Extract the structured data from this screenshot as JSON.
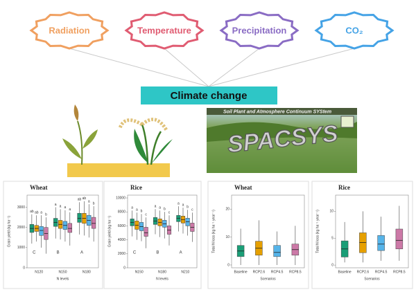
{
  "drivers": [
    {
      "label": "Radiation",
      "color": "#f0a060"
    },
    {
      "label": "Temperature",
      "color": "#e05c72"
    },
    {
      "label": "Precipitation",
      "color": "#8a6cc4"
    },
    {
      "label": "CO₂",
      "color": "#45a3e6"
    }
  ],
  "center": {
    "label": "Climate change",
    "color": "#2ec6c6"
  },
  "model": {
    "banner": "Soil Plant and Atmosphere Continuum SYStem",
    "name": "SPACSYS"
  },
  "chart_data": [
    {
      "type": "box",
      "title": "Wheat",
      "y_label": "Grain yield (kg ha⁻¹)",
      "x_label": "N levels",
      "categories": [
        "N120",
        "N150",
        "N180"
      ],
      "ylim": [
        0,
        3600
      ],
      "yticks": [
        0,
        1000,
        2000,
        3000
      ],
      "group_letters": [
        "C",
        "B",
        "A"
      ],
      "series": [
        {
          "color": "#1a9e77",
          "boxes": [
            [
              1200,
              1750,
              1950,
              2150,
              2650
            ],
            [
              1450,
              2050,
              2250,
              2450,
              3000
            ],
            [
              1650,
              2250,
              2450,
              2700,
              3250
            ]
          ],
          "letters": [
            "ab",
            "a",
            "ab"
          ]
        },
        {
          "color": "#e6a000",
          "boxes": [
            [
              1300,
              1800,
              1950,
              2100,
              2600
            ],
            [
              1400,
              1950,
              2150,
              2350,
              2900
            ],
            [
              1600,
              2200,
              2450,
              2700,
              3300
            ]
          ],
          "letters": [
            "ab",
            "a",
            "ab"
          ]
        },
        {
          "color": "#56b4e9",
          "boxes": [
            [
              1000,
              1600,
              1850,
              2050,
              2600
            ],
            [
              1300,
              1900,
              2100,
              2300,
              2850
            ],
            [
              1500,
              2100,
              2350,
              2600,
              3150
            ]
          ],
          "letters": [
            "a",
            "a",
            "a"
          ]
        },
        {
          "color": "#cc79a7",
          "boxes": [
            [
              700,
              1400,
              1700,
              2000,
              2500
            ],
            [
              1100,
              1750,
              1950,
              2200,
              2750
            ],
            [
              1300,
              1950,
              2200,
              2500,
              3050
            ]
          ],
          "letters": [
            "b",
            "a",
            "b"
          ]
        }
      ]
    },
    {
      "type": "box",
      "title": "Rice",
      "y_label": "Grain yield (kg ha⁻¹)",
      "x_label": "N levels",
      "categories": [
        "N150",
        "N180",
        "N210"
      ],
      "ylim": [
        0,
        10400
      ],
      "yticks": [
        0,
        2000,
        4000,
        6000,
        8000,
        10000
      ],
      "group_letters": [
        "C",
        "B",
        "A"
      ],
      "series": [
        {
          "color": "#1a9e77",
          "boxes": [
            [
              4500,
              6000,
              6500,
              7000,
              8200
            ],
            [
              4800,
              6200,
              6700,
              7200,
              8400
            ],
            [
              5200,
              6600,
              7100,
              7500,
              8800
            ]
          ],
          "letters": [
            "a",
            "a",
            "a"
          ]
        },
        {
          "color": "#e6a000",
          "boxes": [
            [
              4000,
              5500,
              6100,
              6700,
              7900
            ],
            [
              4400,
              6000,
              6500,
              7000,
              8200
            ],
            [
              4900,
              6400,
              6900,
              7400,
              8600
            ]
          ],
          "letters": [
            "a",
            "a",
            "a"
          ]
        },
        {
          "color": "#56b4e9",
          "boxes": [
            [
              3800,
              5300,
              5900,
              6500,
              7700
            ],
            [
              4200,
              5800,
              6300,
              6800,
              8000
            ],
            [
              4600,
              6000,
              6600,
              7100,
              8300
            ]
          ],
          "letters": [
            "b",
            "b",
            "b"
          ]
        },
        {
          "color": "#cc79a7",
          "boxes": [
            [
              2800,
              4500,
              5000,
              5800,
              7200
            ],
            [
              3200,
              4800,
              5400,
              6000,
              7500
            ],
            [
              3700,
              5200,
              5800,
              6400,
              7900
            ]
          ],
          "letters": [
            "c",
            "c",
            "c"
          ]
        }
      ]
    },
    {
      "type": "box",
      "title": "Wheat",
      "y_label": "Total N loss (kg ha⁻¹ year⁻¹)",
      "x_label": "Scenarios",
      "categories": [
        "Baseline",
        "RCP2.6",
        "RCP4.5",
        "RCP8.5"
      ],
      "ylim": [
        -1,
        25
      ],
      "yticks": [
        0,
        10,
        20
      ],
      "series": [
        {
          "colors": [
            "#1a9e77",
            "#e6a000",
            "#56b4e9",
            "#cc79a7"
          ],
          "boxes": [
            [
              0,
              3,
              5,
              7,
              13
            ],
            [
              0,
              3.5,
              6,
              8.5,
              16
            ],
            [
              0,
              3,
              4.5,
              7,
              12
            ],
            [
              0,
              3.5,
              5.5,
              7.5,
              14
            ]
          ]
        }
      ]
    },
    {
      "type": "box",
      "title": "Rice",
      "y_label": "Total N loss (kg ha⁻¹ year⁻¹)",
      "x_label": "Scenarios",
      "categories": [
        "Baseline",
        "RCP2.6",
        "RCP4.5",
        "RCP8.5"
      ],
      "ylim": [
        -0.5,
        13
      ],
      "yticks": [
        0,
        5,
        10
      ],
      "series": [
        {
          "colors": [
            "#1a9e77",
            "#e6a000",
            "#56b4e9",
            "#cc79a7"
          ],
          "boxes": [
            [
              0.5,
              1.5,
              3,
              4.5,
              8
            ],
            [
              0.5,
              2.3,
              4.2,
              6,
              10
            ],
            [
              0.8,
              2.7,
              3.9,
              5.5,
              9
            ],
            [
              0.8,
              3,
              4.6,
              6.7,
              11
            ]
          ]
        }
      ]
    }
  ]
}
